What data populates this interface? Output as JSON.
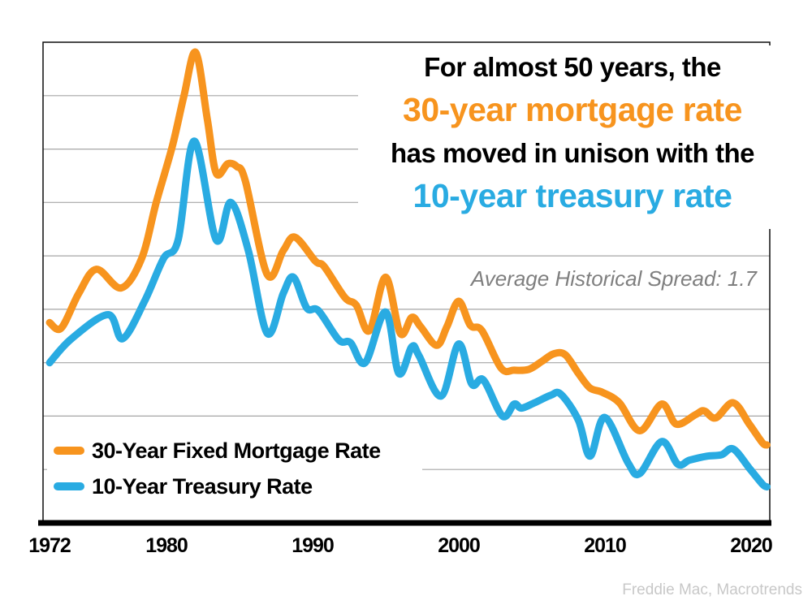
{
  "headline": {
    "line1": "For almost 50 years, the",
    "line2": "30-year mortgage rate",
    "line3": "has moved in unison with the",
    "line4": "10-year treasury rate"
  },
  "annotation": {
    "text": "Average Historical Spread: 1.7"
  },
  "source": {
    "text": "Freddie Mac, Macrotrends"
  },
  "legend": {
    "items": [
      {
        "label": "30-Year Fixed Mortgage Rate",
        "series": "mortgage"
      },
      {
        "label": "10-Year Treasury Rate",
        "series": "treasury"
      }
    ]
  },
  "x_axis": {
    "ticks": [
      "1972",
      "1980",
      "1990",
      "2000",
      "2010",
      "2020"
    ]
  },
  "colors": {
    "mortgage_orange": "#F7941E",
    "treasury_blue": "#29ABE2",
    "gridline_gray": "#A6A6A6",
    "axis_black": "#000000",
    "annotation_gray": "#7F7F7F",
    "attribution_gray": "#C8C8C8"
  },
  "chart_data": {
    "type": "line",
    "title": "For almost 50 years, the 30-year mortgage rate has moved in unison with the 10-year treasury rate",
    "annotation": "Average Historical Spread: 1.7",
    "x_ticks": [
      1972,
      1980,
      1990,
      2000,
      2010,
      2020
    ],
    "xlim": [
      1971.55,
      2021.3
    ],
    "ylim": [
      0,
      18
    ],
    "grid_step": 2,
    "grid": true,
    "legend_position": "bottom-left",
    "series": [
      {
        "name": "30-Year Fixed Mortgage Rate",
        "color": "#F7941E",
        "points": [
          [
            1972.0,
            7.5
          ],
          [
            1972.8,
            7.3
          ],
          [
            1974.0,
            8.6
          ],
          [
            1975.2,
            9.5
          ],
          [
            1976.9,
            8.8
          ],
          [
            1978.3,
            9.9
          ],
          [
            1979.3,
            12.0
          ],
          [
            1980.4,
            14.1
          ],
          [
            1981.2,
            16.0
          ],
          [
            1982.0,
            17.62
          ],
          [
            1982.8,
            15.1
          ],
          [
            1983.4,
            13.1
          ],
          [
            1984.2,
            13.45
          ],
          [
            1984.8,
            13.35
          ],
          [
            1985.4,
            12.8
          ],
          [
            1986.9,
            9.3
          ],
          [
            1988.0,
            10.2
          ],
          [
            1988.8,
            10.7
          ],
          [
            1990.2,
            9.8
          ],
          [
            1990.8,
            9.6
          ],
          [
            1992.2,
            8.45
          ],
          [
            1993.0,
            8.15
          ],
          [
            1993.9,
            7.2
          ],
          [
            1995.0,
            9.2
          ],
          [
            1996.0,
            7.1
          ],
          [
            1996.8,
            7.7
          ],
          [
            1997.4,
            7.35
          ],
          [
            1998.5,
            6.65
          ],
          [
            1999.2,
            7.35
          ],
          [
            2000.0,
            8.3
          ],
          [
            2000.8,
            7.4
          ],
          [
            2001.6,
            7.2
          ],
          [
            2002.9,
            5.8
          ],
          [
            2003.8,
            5.72
          ],
          [
            2004.8,
            5.75
          ],
          [
            2005.7,
            6.05
          ],
          [
            2006.5,
            6.33
          ],
          [
            2007.3,
            6.3
          ],
          [
            2008.2,
            5.6
          ],
          [
            2009.0,
            5.05
          ],
          [
            2009.8,
            4.9
          ],
          [
            2011.0,
            4.5
          ],
          [
            2012.4,
            3.45
          ],
          [
            2013.9,
            4.45
          ],
          [
            2014.9,
            3.7
          ],
          [
            2016.2,
            4.05
          ],
          [
            2016.8,
            4.2
          ],
          [
            2017.6,
            3.93
          ],
          [
            2018.8,
            4.5
          ],
          [
            2019.9,
            3.7
          ],
          [
            2020.8,
            3.0
          ],
          [
            2021.1,
            2.92
          ]
        ]
      },
      {
        "name": "10-Year Treasury Rate",
        "color": "#29ABE2",
        "points": [
          [
            1972.0,
            6.0
          ],
          [
            1973.5,
            6.9
          ],
          [
            1976.0,
            7.8
          ],
          [
            1977.0,
            6.9
          ],
          [
            1978.5,
            8.3
          ],
          [
            1979.8,
            9.9
          ],
          [
            1980.8,
            10.6
          ],
          [
            1981.9,
            14.3
          ],
          [
            1983.4,
            10.6
          ],
          [
            1984.4,
            12.0
          ],
          [
            1985.6,
            10.2
          ],
          [
            1986.9,
            7.1
          ],
          [
            1988.0,
            8.6
          ],
          [
            1988.7,
            9.2
          ],
          [
            1989.6,
            8.05
          ],
          [
            1990.4,
            7.95
          ],
          [
            1991.8,
            6.85
          ],
          [
            1992.6,
            6.75
          ],
          [
            1993.6,
            6.0
          ],
          [
            1995.0,
            7.9
          ],
          [
            1995.9,
            5.6
          ],
          [
            1996.8,
            6.6
          ],
          [
            1997.3,
            6.25
          ],
          [
            1998.8,
            4.75
          ],
          [
            2000.0,
            6.7
          ],
          [
            2000.9,
            5.2
          ],
          [
            2001.7,
            5.35
          ],
          [
            2003.0,
            4.0
          ],
          [
            2003.8,
            4.45
          ],
          [
            2004.3,
            4.3
          ],
          [
            2005.2,
            4.5
          ],
          [
            2006.3,
            4.78
          ],
          [
            2007.0,
            4.82
          ],
          [
            2008.2,
            3.85
          ],
          [
            2009.0,
            2.5
          ],
          [
            2010.0,
            3.95
          ],
          [
            2011.6,
            2.25
          ],
          [
            2012.4,
            1.85
          ],
          [
            2013.9,
            3.05
          ],
          [
            2015.0,
            2.2
          ],
          [
            2015.8,
            2.35
          ],
          [
            2017.0,
            2.5
          ],
          [
            2018.0,
            2.55
          ],
          [
            2018.8,
            2.77
          ],
          [
            2019.9,
            2.05
          ],
          [
            2020.8,
            1.45
          ],
          [
            2021.1,
            1.35
          ]
        ]
      }
    ]
  }
}
